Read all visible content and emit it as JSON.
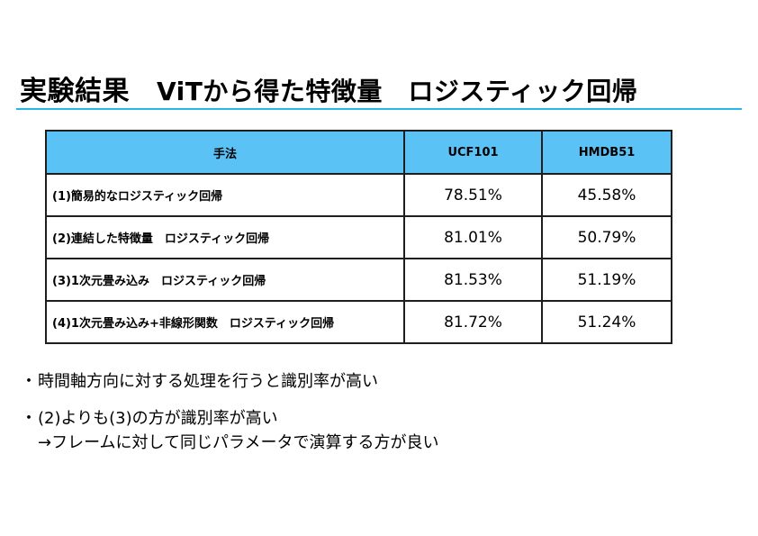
{
  "slide": {
    "title": "実験結果",
    "subtitle": "ViTから得た特徴量　ロジスティック回帰"
  },
  "table": {
    "headers": [
      "手法",
      "UCF101",
      "HMDB51"
    ],
    "rows": [
      {
        "method": "(1)簡易的なロジスティック回帰",
        "ucf101": "78.51%",
        "hmdb51": "45.58%"
      },
      {
        "method": "(2)連結した特徴量　ロジスティック回帰",
        "ucf101": "81.01%",
        "hmdb51": "50.79%"
      },
      {
        "method": "(3)1次元畳み込み　ロジスティック回帰",
        "ucf101": "81.53%",
        "hmdb51": "51.19%"
      },
      {
        "method": "(4)1次元畳み込み+非線形関数　ロジスティック回帰",
        "ucf101": "81.72%",
        "hmdb51": "51.24%"
      }
    ],
    "header_color": "#5bc2f6"
  },
  "bullets": {
    "marker": "・",
    "item1": "時間軸方向に対する処理を行うと識別率が高い",
    "item2_line1": "(2)よりも(3)の方が識別率が高い",
    "item2_line2": "→フレームに対して同じパラメータで演算する方が良い"
  },
  "accent_color": "#27b7e6"
}
